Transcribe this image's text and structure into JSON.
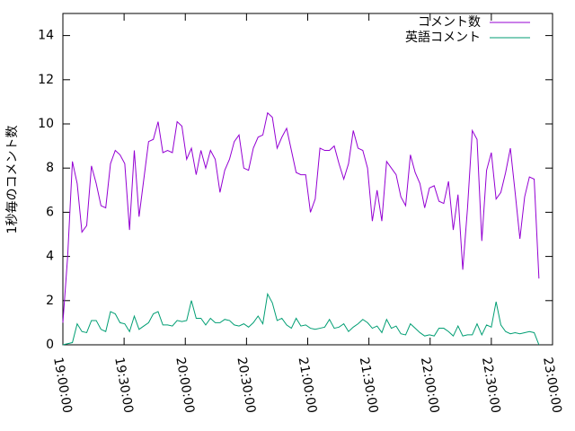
{
  "chart_data": {
    "type": "line",
    "ylabel": "1秒毎のコメント数",
    "x": [
      "19:00:00",
      "19:02:20",
      "19:04:40",
      "19:07:00",
      "19:09:20",
      "19:11:40",
      "19:14:00",
      "19:16:20",
      "19:18:40",
      "19:21:00",
      "19:23:20",
      "19:25:40",
      "19:28:00",
      "19:30:20",
      "19:32:40",
      "19:35:00",
      "19:37:20",
      "19:39:40",
      "19:42:00",
      "19:44:20",
      "19:46:40",
      "19:49:00",
      "19:51:20",
      "19:53:40",
      "19:56:00",
      "19:58:20",
      "20:00:40",
      "20:03:00",
      "20:05:20",
      "20:07:40",
      "20:10:00",
      "20:12:20",
      "20:14:40",
      "20:17:00",
      "20:19:20",
      "20:21:40",
      "20:24:00",
      "20:26:20",
      "20:28:40",
      "20:31:00",
      "20:33:20",
      "20:35:40",
      "20:38:00",
      "20:40:20",
      "20:42:40",
      "20:45:00",
      "20:47:20",
      "20:49:40",
      "20:52:00",
      "20:54:20",
      "20:56:40",
      "20:59:00",
      "21:01:20",
      "21:03:40",
      "21:06:00",
      "21:08:20",
      "21:10:40",
      "21:13:00",
      "21:15:20",
      "21:17:40",
      "21:20:00",
      "21:22:20",
      "21:24:40",
      "21:27:00",
      "21:29:20",
      "21:31:40",
      "21:34:00",
      "21:36:20",
      "21:38:40",
      "21:41:00",
      "21:43:20",
      "21:45:40",
      "21:48:00",
      "21:50:20",
      "21:52:40",
      "21:55:00",
      "21:57:20",
      "21:59:40",
      "22:02:00",
      "22:04:20",
      "22:06:40",
      "22:09:00",
      "22:11:20",
      "22:13:40",
      "22:16:00",
      "22:18:20",
      "22:20:40",
      "22:23:00",
      "22:25:20",
      "22:27:40",
      "22:30:00",
      "22:32:20",
      "22:34:40",
      "22:37:00",
      "22:39:20",
      "22:41:40",
      "22:44:00",
      "22:46:20",
      "22:48:40",
      "22:51:00",
      "22:53:20"
    ],
    "series": [
      {
        "name": "コメント数",
        "color": "#9400d3",
        "values": [
          1.0,
          4,
          8.3,
          7.3,
          5.1,
          5.4,
          8.1,
          7.3,
          6.3,
          6.2,
          8.2,
          8.8,
          8.6,
          8.2,
          5.2,
          8.8,
          5.8,
          7.5,
          9.2,
          9.3,
          10.1,
          8.7,
          8.8,
          8.7,
          10.1,
          9.9,
          8.4,
          8.9,
          7.7,
          8.8,
          8.0,
          8.8,
          8.4,
          6.9,
          7.9,
          8.4,
          9.2,
          9.5,
          8.0,
          7.9,
          8.9,
          9.4,
          9.5,
          10.5,
          10.3,
          8.9,
          9.4,
          9.8,
          8.8,
          7.8,
          7.7,
          7.7,
          6.0,
          6.6,
          8.9,
          8.8,
          8.8,
          9.0,
          8.2,
          7.5,
          8.2,
          9.7,
          8.9,
          8.8,
          8.0,
          5.6,
          7.0,
          5.6,
          8.3,
          8.0,
          7.7,
          6.7,
          6.3,
          8.6,
          7.8,
          7.3,
          6.2,
          7.1,
          7.2,
          6.5,
          6.4,
          7.4,
          5.2,
          6.8,
          3.4,
          6.2,
          9.7,
          9.3,
          4.7,
          7.9,
          8.7,
          6.6,
          6.9,
          7.8,
          8.9,
          6.9,
          4.8,
          6.7,
          7.6,
          7.5,
          3.0
        ]
      },
      {
        "name": "英語コメント",
        "color": "#009e73",
        "values": [
          0,
          0.05,
          0.1,
          0.95,
          0.6,
          0.55,
          1.1,
          1.1,
          0.7,
          0.6,
          1.5,
          1.4,
          1.0,
          0.95,
          0.6,
          1.3,
          0.7,
          0.85,
          1.0,
          1.4,
          1.5,
          0.9,
          0.9,
          0.85,
          1.1,
          1.05,
          1.1,
          2.0,
          1.2,
          1.2,
          0.9,
          1.2,
          1.0,
          1.0,
          1.15,
          1.1,
          0.9,
          0.85,
          0.95,
          0.8,
          1.0,
          1.3,
          0.95,
          2.3,
          1.9,
          1.1,
          1.2,
          0.9,
          0.75,
          1.2,
          0.85,
          0.9,
          0.75,
          0.7,
          0.75,
          0.8,
          1.15,
          0.75,
          0.8,
          0.95,
          0.6,
          0.8,
          0.95,
          1.15,
          1.0,
          0.75,
          0.85,
          0.55,
          1.15,
          0.75,
          0.85,
          0.5,
          0.45,
          0.95,
          0.75,
          0.55,
          0.4,
          0.45,
          0.4,
          0.75,
          0.75,
          0.6,
          0.4,
          0.85,
          0.4,
          0.45,
          0.45,
          0.95,
          0.45,
          0.9,
          0.8,
          1.95,
          0.9,
          0.6,
          0.5,
          0.55,
          0.5,
          0.55,
          0.6,
          0.55,
          0.0
        ]
      }
    ],
    "xlim": [
      "19:00:00",
      "23:00:00"
    ],
    "xticks": [
      "19:00:00",
      "19:30:00",
      "20:00:00",
      "20:30:00",
      "21:00:00",
      "21:30:00",
      "22:00:00",
      "22:30:00",
      "23:00:00"
    ],
    "ylim": [
      0,
      15
    ],
    "yticks": [
      0,
      2,
      4,
      6,
      8,
      10,
      12,
      14
    ],
    "legend": "top-right"
  }
}
